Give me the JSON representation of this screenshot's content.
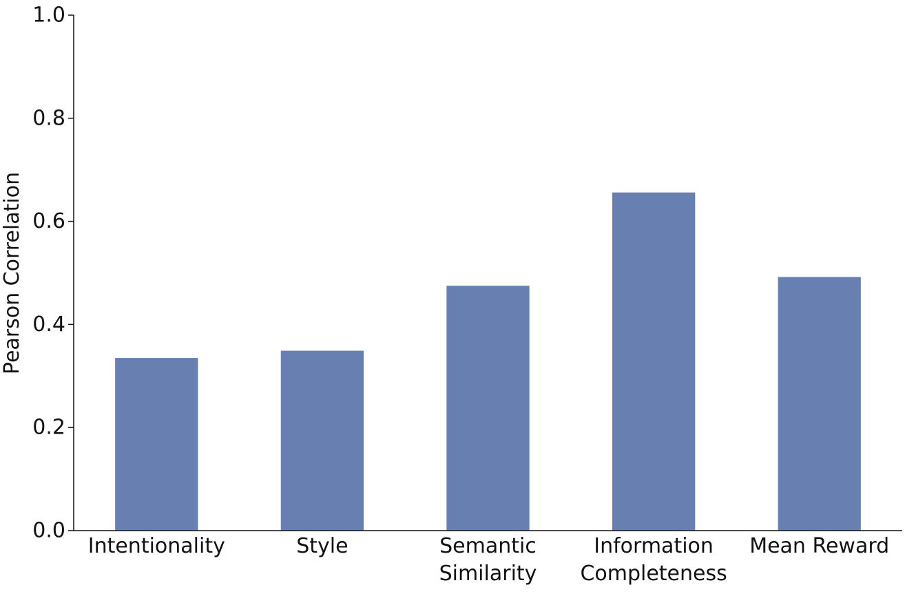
{
  "chart_data": {
    "type": "bar",
    "title": "",
    "xlabel": "",
    "ylabel": "Pearson Correlation",
    "categories": [
      [
        "Intentionality"
      ],
      [
        "Style"
      ],
      [
        "Semantic",
        "Similarity"
      ],
      [
        "Information",
        "Completeness"
      ],
      [
        "Mean Reward"
      ]
    ],
    "values": [
      0.335,
      0.349,
      0.475,
      0.656,
      0.492
    ],
    "ylim": [
      0.0,
      1.0
    ],
    "yticks": [
      "0.0",
      "0.2",
      "0.4",
      "0.6",
      "0.8",
      "1.0"
    ],
    "ytick_values": [
      0.0,
      0.2,
      0.4,
      0.6,
      0.8,
      1.0
    ],
    "grid": false,
    "bar_color": "#6780b1"
  }
}
